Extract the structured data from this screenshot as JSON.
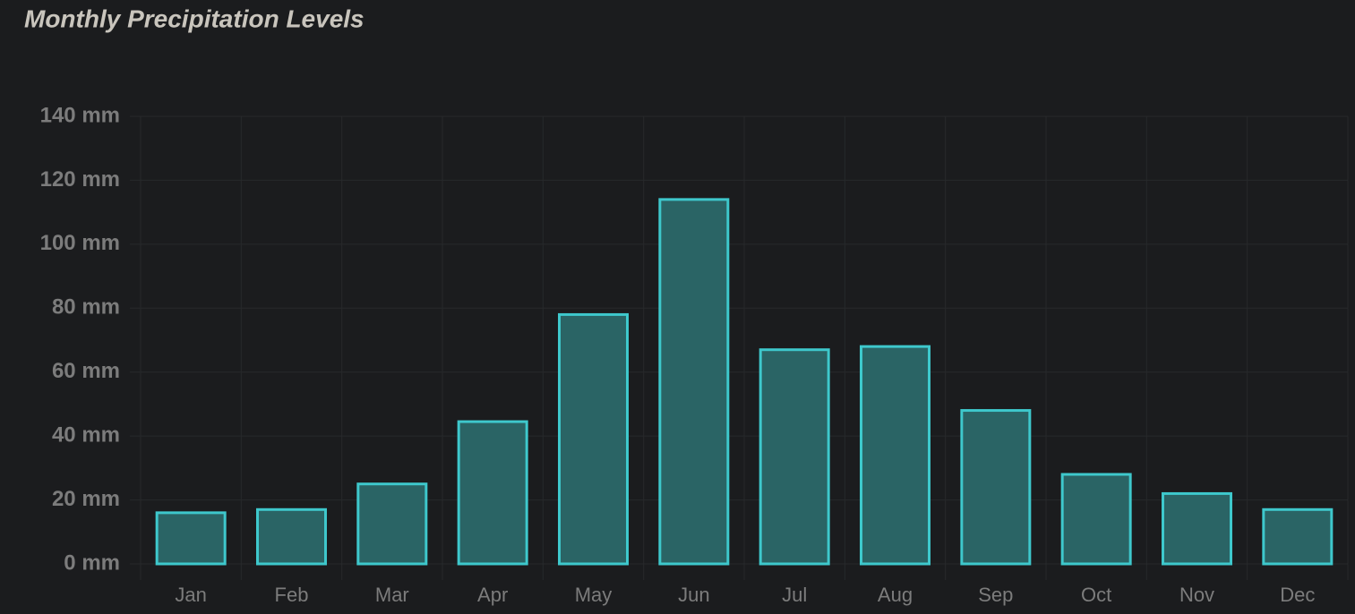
{
  "chart_data": {
    "type": "bar",
    "title": "Monthly Precipitation Levels",
    "categories": [
      "Jan",
      "Feb",
      "Mar",
      "Apr",
      "May",
      "Jun",
      "Jul",
      "Aug",
      "Sep",
      "Oct",
      "Nov",
      "Dec"
    ],
    "values": [
      16,
      17,
      25,
      44.5,
      78,
      114,
      67,
      68,
      48,
      28,
      22,
      17
    ],
    "color": "#2a6465",
    "edge_color": "#3ec8cc",
    "ylim": [
      0,
      140
    ],
    "yticks": [
      {
        "value": 0,
        "label": "0 mm"
      },
      {
        "value": 20,
        "label": "20 mm"
      },
      {
        "value": 40,
        "label": "40 mm"
      },
      {
        "value": 60,
        "label": "60 mm"
      },
      {
        "value": 80,
        "label": "80 mm"
      },
      {
        "value": 100,
        "label": "100 mm"
      },
      {
        "value": 120,
        "label": "120 mm"
      },
      {
        "value": 140,
        "label": "140 mm"
      }
    ],
    "grid": true
  }
}
